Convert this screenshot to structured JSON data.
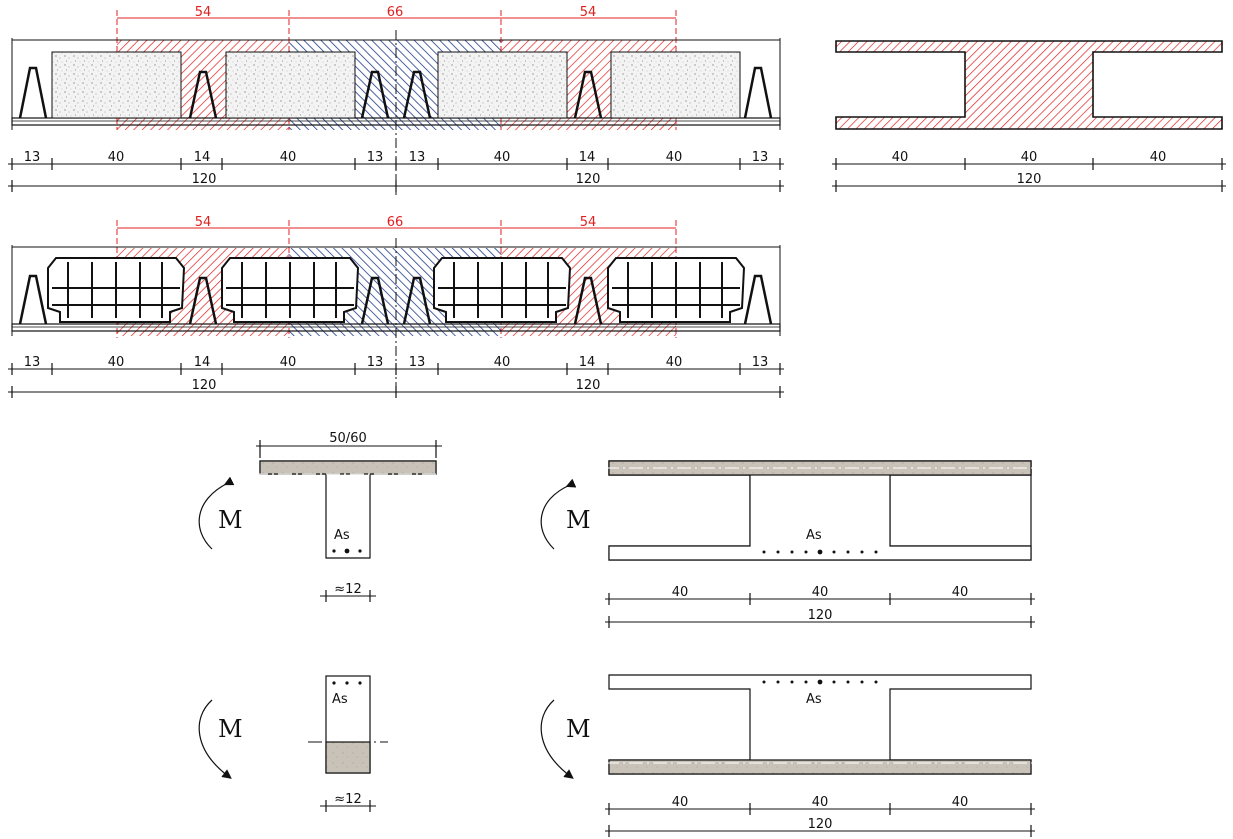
{
  "colors": {
    "red_hatch": "#e02020",
    "blue_hatch": "#1e3a8a",
    "concrete": "#c9c2b8",
    "line": "#111111"
  },
  "panel1": {
    "width_labels": [
      "54",
      "66",
      "54"
    ],
    "dims_row1": [
      "13",
      "40",
      "14",
      "40",
      "13",
      "13",
      "40",
      "14",
      "40",
      "13"
    ],
    "dims_row2": [
      "120",
      "120"
    ]
  },
  "panel2": {
    "dims": [
      "40",
      "40",
      "40"
    ],
    "total": "120"
  },
  "panel3": {
    "width_labels": [
      "54",
      "66",
      "54"
    ],
    "dims_row1": [
      "13",
      "40",
      "14",
      "40",
      "13",
      "13",
      "40",
      "14",
      "40",
      "13"
    ],
    "dims_row2": [
      "120",
      "120"
    ]
  },
  "tee_section": {
    "flange_width": "50/60",
    "web_width": "≈12",
    "moment": "M",
    "steel": "As"
  },
  "rect_section": {
    "web_width": "≈12",
    "moment": "M",
    "steel": "As"
  },
  "double_tee_positive": {
    "moment": "M",
    "steel": "As",
    "dims": [
      "40",
      "40",
      "40"
    ],
    "total": "120"
  },
  "double_tee_negative": {
    "moment": "M",
    "steel": "As",
    "dims": [
      "40",
      "40",
      "40"
    ],
    "total": "120"
  }
}
